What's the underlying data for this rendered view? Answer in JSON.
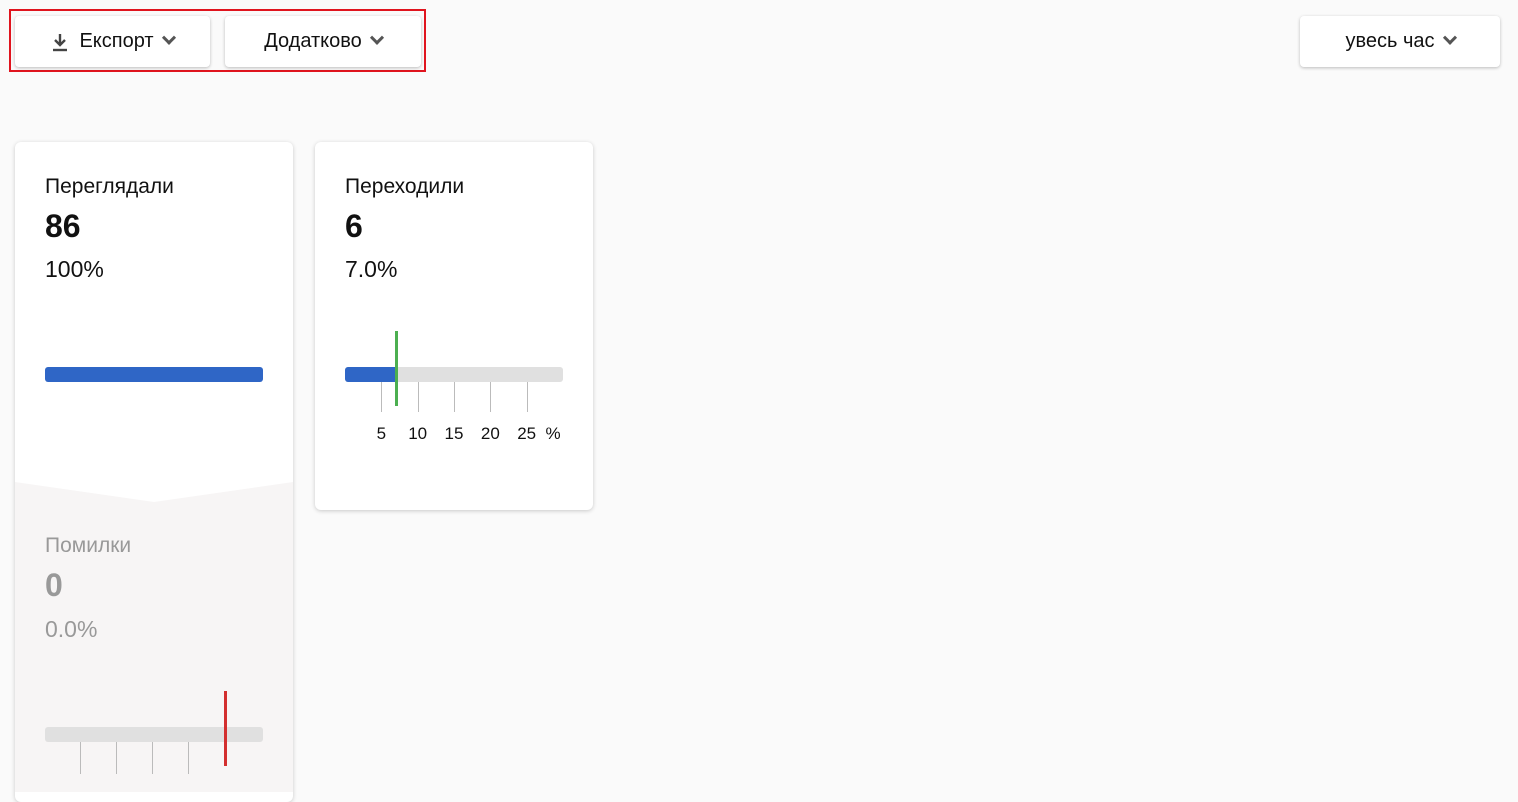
{
  "toolbar": {
    "export_label": "Експорт",
    "more_label": "Додатково",
    "period_label": "увесь час"
  },
  "cards": [
    {
      "label": "Переглядали",
      "count": "86",
      "percent": "100%",
      "bar_value": 100,
      "accent": "#2f66c6"
    },
    {
      "label": "Переходили",
      "count": "6",
      "percent": "7.0%",
      "bar_value": 7.0,
      "scale_max": 30,
      "marker_value": 7.0,
      "marker_color": "#4caf50",
      "ticks": [
        "5",
        "10",
        "15",
        "20",
        "25"
      ],
      "unit": "%"
    },
    {
      "label": "Помилки",
      "count": "0",
      "percent": "0.0%",
      "bar_value": 0,
      "marker_color": "#d32f2f"
    }
  ]
}
